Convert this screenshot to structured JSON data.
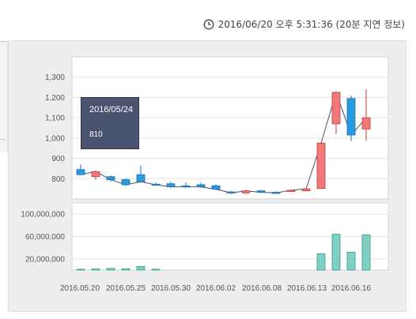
{
  "header": {
    "timestamp": "2016/06/20 오후 5:31:36 (20분 지연 정보)",
    "icon": "clock-icon"
  },
  "tooltip": {
    "date": "2016/05/24",
    "value": "810"
  },
  "colors": {
    "up": "#f07878",
    "down": "#2a9ae0",
    "volume": "#7fd0c4",
    "line": "#4a5470"
  },
  "chart_data": [
    {
      "type": "candlestick",
      "title": "",
      "ylim": [
        700,
        1400
      ],
      "yticks": [
        800,
        900,
        1000,
        1100,
        1200,
        1300
      ],
      "ytick_labels": [
        "800",
        "900",
        "1,000",
        "1,100",
        "1,200",
        "1,300"
      ],
      "grid": true,
      "x_label_dates": [
        "2016.05.20",
        "2016.05.25",
        "2016.05.30",
        "2016.06.02",
        "2016.06.08",
        "2016.06.13",
        "2016.06.16"
      ],
      "candles": [
        {
          "open": 845,
          "close": 820,
          "high": 870,
          "low": 815
        },
        {
          "open": 810,
          "close": 835,
          "high": 840,
          "low": 795
        },
        {
          "open": 810,
          "close": 795,
          "high": 815,
          "low": 785
        },
        {
          "open": 795,
          "close": 770,
          "high": 800,
          "low": 765
        },
        {
          "open": 820,
          "close": 785,
          "high": 865,
          "low": 780
        },
        {
          "open": 773,
          "close": 770,
          "high": 780,
          "low": 765
        },
        {
          "open": 775,
          "close": 760,
          "high": 785,
          "low": 755
        },
        {
          "open": 765,
          "close": 760,
          "high": 780,
          "low": 755
        },
        {
          "open": 770,
          "close": 760,
          "high": 780,
          "low": 755
        },
        {
          "open": 765,
          "close": 748,
          "high": 772,
          "low": 745
        },
        {
          "open": 735,
          "close": 730,
          "high": 740,
          "low": 725
        },
        {
          "open": 730,
          "close": 740,
          "high": 745,
          "low": 725
        },
        {
          "open": 740,
          "close": 733,
          "high": 745,
          "low": 728
        },
        {
          "open": 733,
          "close": 730,
          "high": 738,
          "low": 726
        },
        {
          "open": 740,
          "close": 743,
          "high": 748,
          "low": 735
        },
        {
          "open": 740,
          "close": 750,
          "high": 755,
          "low": 738
        },
        {
          "open": 752,
          "close": 975,
          "high": 980,
          "low": 750
        },
        {
          "open": 1070,
          "close": 1225,
          "high": 1230,
          "low": 1020
        },
        {
          "open": 1195,
          "close": 1015,
          "high": 1210,
          "low": 985
        },
        {
          "open": 1045,
          "close": 1100,
          "high": 1240,
          "low": 985
        }
      ],
      "close_line": [
        820,
        835,
        795,
        770,
        785,
        770,
        760,
        760,
        760,
        748,
        730,
        740,
        733,
        730,
        743,
        750,
        975,
        1225,
        1015,
        1100
      ]
    },
    {
      "type": "bar",
      "title": "",
      "ylim": [
        0,
        120000000
      ],
      "yticks": [
        20000000,
        60000000,
        100000000
      ],
      "ytick_labels": [
        "20,000,000",
        "60,000,000",
        "100,000,000"
      ],
      "grid": true,
      "values": [
        1500000,
        2000000,
        3000000,
        2500000,
        6500000,
        1500000,
        0,
        0,
        0,
        0,
        0,
        0,
        0,
        0,
        0,
        0,
        29000000,
        64000000,
        32000000,
        63000000
      ]
    }
  ]
}
